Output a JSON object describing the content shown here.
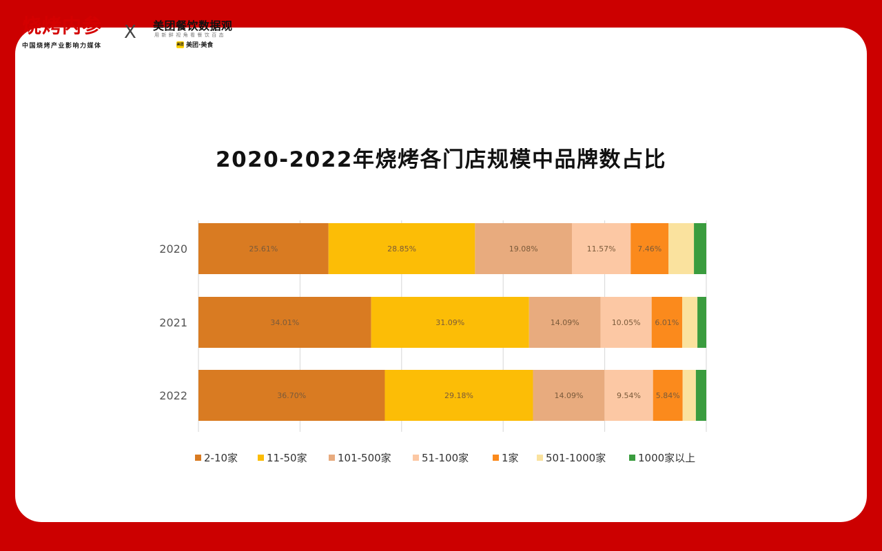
{
  "branding": {
    "logo_text": "烧烤内参",
    "logo_subtitle": "中国烧烤产业影响力媒体",
    "separator": "X",
    "partner_name": "美团餐饮数据观",
    "partner_slogan": "用新鲜视角看餐饮百态",
    "partner_badge_mark": "美团",
    "partner_badge_text": "美团·美食"
  },
  "colors": {
    "frame": "#cc0000",
    "brand_red": "#d40000"
  },
  "chart_data": {
    "type": "bar",
    "orientation": "horizontal",
    "stacked": true,
    "title": "2020-2022年烧烤各门店规模中品牌数占比",
    "categories": [
      "2020",
      "2021",
      "2022"
    ],
    "xlim": [
      0,
      100
    ],
    "grid": true,
    "legend_position": "bottom",
    "series": [
      {
        "name": "2-10家",
        "color": "#d97b22",
        "values": [
          25.61,
          34.01,
          36.7
        ],
        "labels": [
          "25.61%",
          "34.01%",
          "36.70%"
        ]
      },
      {
        "name": "11-50家",
        "color": "#fcbd06",
        "values": [
          28.85,
          31.09,
          29.18
        ],
        "labels": [
          "28.85%",
          "31.09%",
          "29.18%"
        ]
      },
      {
        "name": "101-500家",
        "color": "#e8ab7e",
        "values": [
          19.08,
          14.09,
          14.09
        ],
        "labels": [
          "19.08%",
          "14.09%",
          "14.09%"
        ]
      },
      {
        "name": "51-100家",
        "color": "#fcc8a4",
        "values": [
          11.57,
          10.05,
          9.54
        ],
        "labels": [
          "11.57%",
          "10.05%",
          "9.54%"
        ]
      },
      {
        "name": "1家",
        "color": "#fb8a1c",
        "values": [
          7.46,
          6.01,
          5.84
        ],
        "labels": [
          "7.46%",
          "6.01%",
          "5.84%"
        ]
      },
      {
        "name": "501-1000家",
        "color": "#fae29e",
        "values": [
          5.0,
          3.0,
          2.6
        ],
        "labels": [
          "",
          "",
          ""
        ]
      },
      {
        "name": "1000家以上",
        "color": "#3a9c3e",
        "values": [
          2.43,
          1.75,
          2.05
        ],
        "labels": [
          "",
          "",
          ""
        ]
      }
    ]
  }
}
